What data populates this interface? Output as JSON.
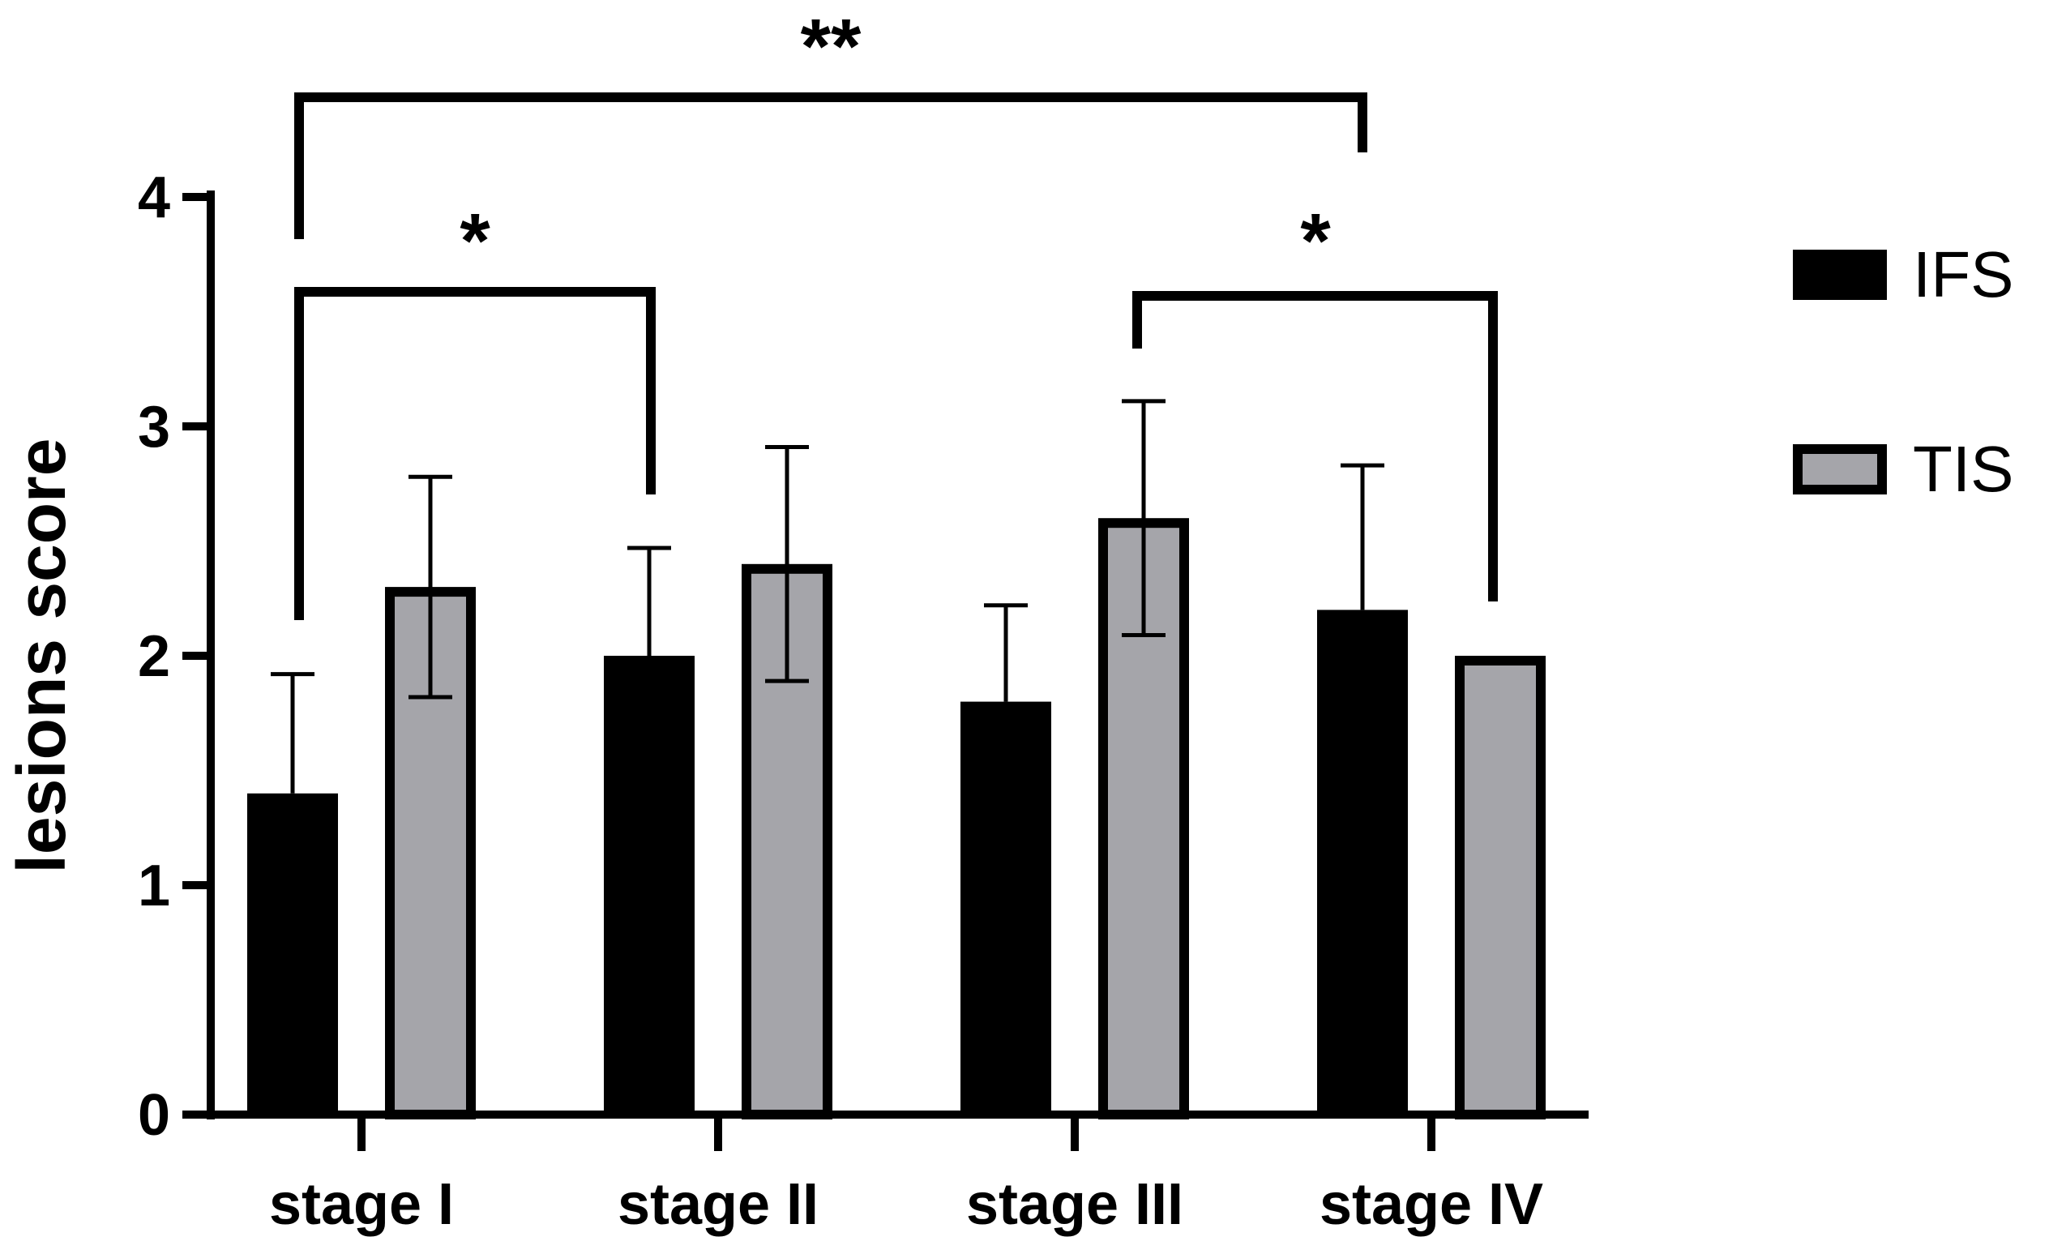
{
  "chart_data": {
    "type": "bar",
    "title": "",
    "xlabel": "",
    "ylabel": "lesions score",
    "ylim": [
      0,
      4
    ],
    "yticks": [
      0,
      1,
      2,
      3,
      4
    ],
    "categories": [
      "stage I",
      "stage II",
      "stage  III",
      "stage IV"
    ],
    "series": [
      {
        "name": "IFS",
        "color": "#000000",
        "values": [
          1.4,
          2.0,
          1.8,
          2.2
        ],
        "errors": [
          0.52,
          0.47,
          0.42,
          0.63
        ]
      },
      {
        "name": "TIS",
        "color": "#a5a5aa",
        "edge": "#000000",
        "values": [
          2.3,
          2.4,
          2.6,
          2.0
        ],
        "errors": [
          0.48,
          0.51,
          0.51,
          0.0
        ]
      }
    ],
    "grid": false,
    "legend": "right",
    "annotations": [
      {
        "label": "**",
        "from": "stage I",
        "to": "stage IV",
        "level": "top"
      },
      {
        "label": "*",
        "from": "stage I",
        "to": "stage II",
        "level": "middle"
      },
      {
        "label": "*",
        "from": "stage  III",
        "to": "stage IV",
        "level": "middle"
      }
    ]
  }
}
